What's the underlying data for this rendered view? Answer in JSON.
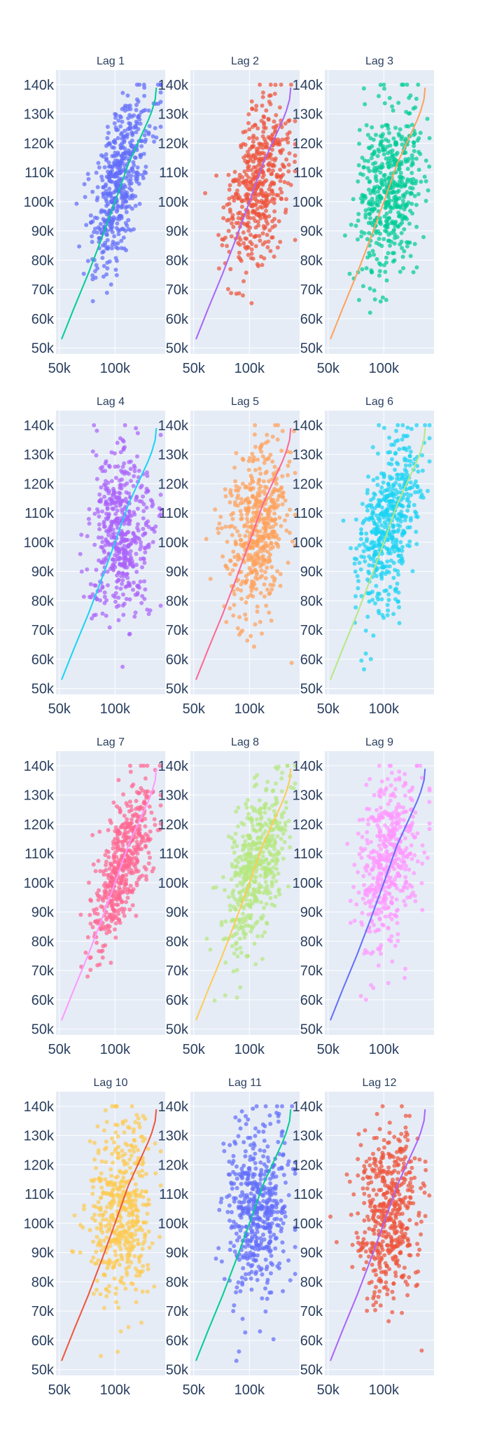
{
  "chart_data": {
    "type": "scatter",
    "layout": "lag-plot grid, 4 rows x 3 columns",
    "plot_background": "#e5ecf6",
    "grid_color": "#ffffff",
    "grid": true,
    "x_range": [
      47000,
      145000
    ],
    "y_range": [
      48000,
      145000
    ],
    "x_ticks": [
      50000,
      100000
    ],
    "x_tick_labels": [
      "50k",
      "100k"
    ],
    "y_ticks": [
      50000,
      60000,
      70000,
      80000,
      90000,
      100000,
      110000,
      120000,
      130000,
      140000
    ],
    "y_tick_labels": [
      "50k",
      "60k",
      "70k",
      "80k",
      "90k",
      "100k",
      "110k",
      "120k",
      "130k",
      "140k"
    ],
    "points_per_panel": 500,
    "panels": [
      {
        "title": "Lag 1",
        "lag": 1,
        "marker_color": "#636efa",
        "line_color": "#00cc96",
        "corr": 0.6,
        "cluster_x": 105000,
        "cluster_y": 108000
      },
      {
        "title": "Lag 2",
        "lag": 2,
        "marker_color": "#ef553b",
        "line_color": "#ab63fa",
        "corr": 0.42,
        "cluster_x": 108000,
        "cluster_y": 106000
      },
      {
        "title": "Lag 3",
        "lag": 3,
        "marker_color": "#00cc96",
        "line_color": "#ffa15a",
        "corr": 0.18,
        "cluster_x": 106000,
        "cluster_y": 105000
      },
      {
        "title": "Lag 4",
        "lag": 4,
        "marker_color": "#ab63fa",
        "line_color": "#19d3f3",
        "corr": 0.08,
        "cluster_x": 106000,
        "cluster_y": 104000
      },
      {
        "title": "Lag 5",
        "lag": 5,
        "marker_color": "#ffa15a",
        "line_color": "#ff6692",
        "corr": 0.22,
        "cluster_x": 106000,
        "cluster_y": 104000
      },
      {
        "title": "Lag 6",
        "lag": 6,
        "marker_color": "#19d3f3",
        "line_color": "#b6e880",
        "corr": 0.45,
        "cluster_x": 104000,
        "cluster_y": 106000
      },
      {
        "title": "Lag 7",
        "lag": 7,
        "marker_color": "#ff6692",
        "line_color": "#ff97ff",
        "corr": 0.72,
        "cluster_x": 106000,
        "cluster_y": 106000
      },
      {
        "title": "Lag 8",
        "lag": 8,
        "marker_color": "#b6e880",
        "line_color": "#fecb52",
        "corr": 0.48,
        "cluster_x": 106000,
        "cluster_y": 106000
      },
      {
        "title": "Lag 9",
        "lag": 9,
        "marker_color": "#ff97ff",
        "line_color": "#636efa",
        "corr": 0.3,
        "cluster_x": 104000,
        "cluster_y": 106000
      },
      {
        "title": "Lag 10",
        "lag": 10,
        "marker_color": "#fecb52",
        "line_color": "#ef553b",
        "corr": 0.12,
        "cluster_x": 106000,
        "cluster_y": 104000
      },
      {
        "title": "Lag 11",
        "lag": 11,
        "marker_color": "#636efa",
        "line_color": "#00cc96",
        "corr": 0.12,
        "cluster_x": 106000,
        "cluster_y": 104000
      },
      {
        "title": "Lag 12",
        "lag": 12,
        "marker_color": "#ef553b",
        "line_color": "#ab63fa",
        "corr": 0.06,
        "cluster_x": 104000,
        "cluster_y": 104000
      }
    ],
    "reference_line": [
      {
        "x": 52000,
        "y": 53000
      },
      {
        "x": 63000,
        "y": 63500
      },
      {
        "x": 76000,
        "y": 75500
      },
      {
        "x": 88000,
        "y": 87500
      },
      {
        "x": 100000,
        "y": 100000
      },
      {
        "x": 112000,
        "y": 113000
      },
      {
        "x": 124000,
        "y": 123000
      },
      {
        "x": 130000,
        "y": 128000
      },
      {
        "x": 133000,
        "y": 131000
      },
      {
        "x": 136000,
        "y": 135000
      },
      {
        "x": 137000,
        "y": 139000
      }
    ]
  }
}
